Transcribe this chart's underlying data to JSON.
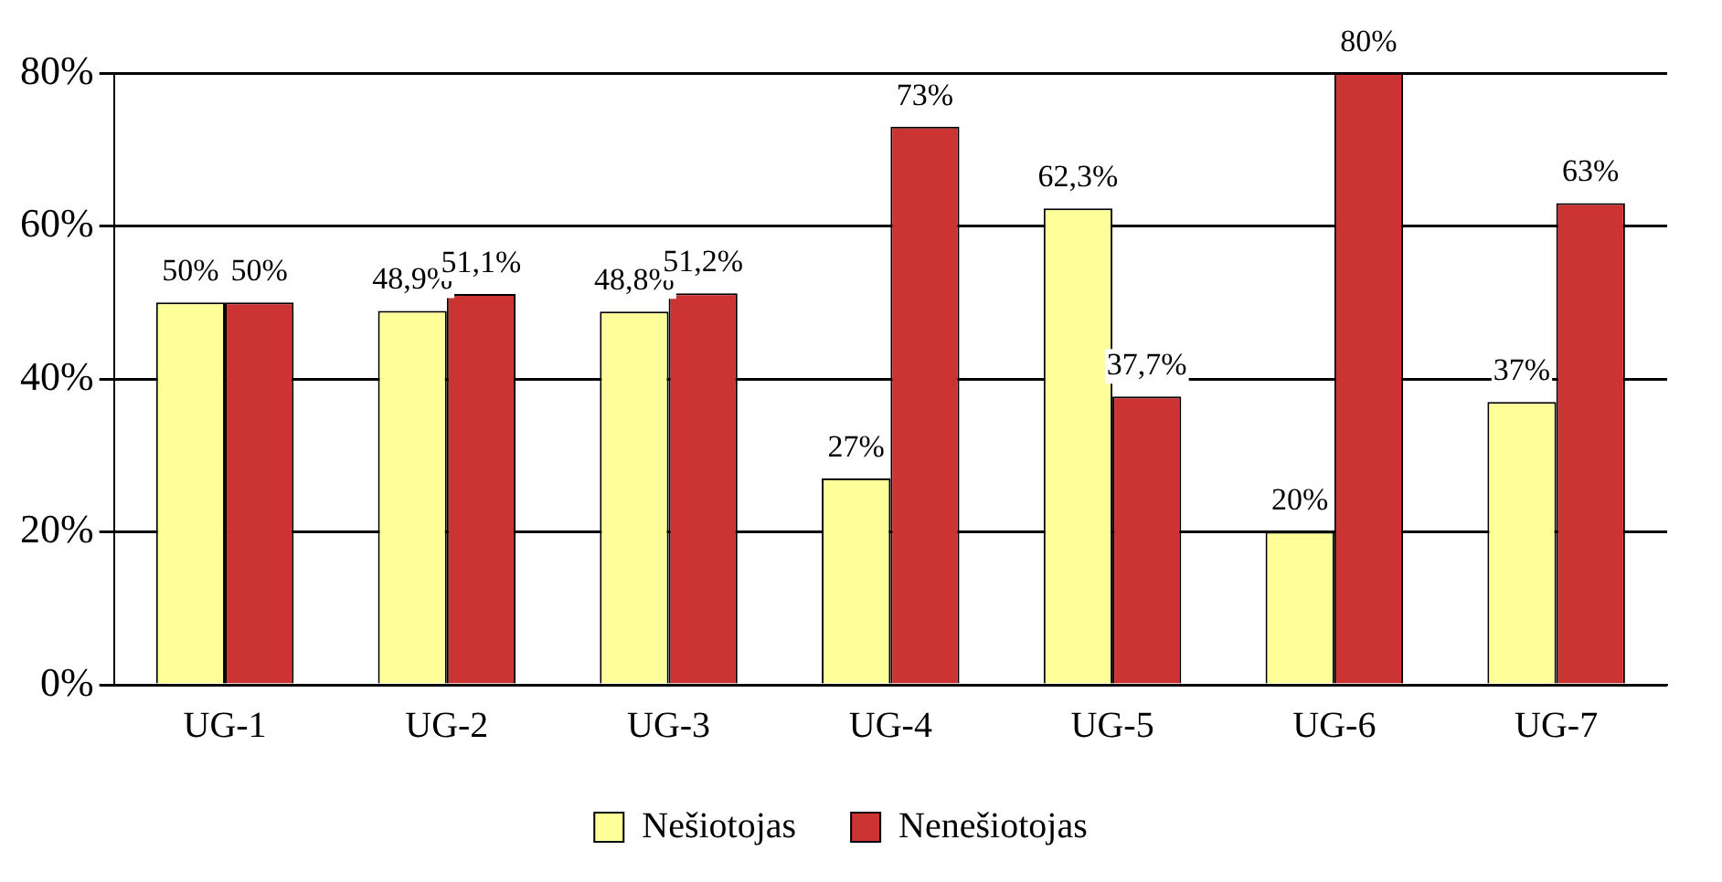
{
  "chart_data": {
    "type": "bar",
    "categories": [
      "UG-1",
      "UG-2",
      "UG-3",
      "UG-4",
      "UG-5",
      "UG-6",
      "UG-7"
    ],
    "series": [
      {
        "name": "Nešiotojas",
        "color": "#ffff99",
        "values": [
          50,
          48.9,
          48.8,
          27,
          62.3,
          20,
          37
        ],
        "value_labels": [
          "50%",
          "48,9%",
          "48,8%",
          "27%",
          "62,3%",
          "20%",
          "37%"
        ]
      },
      {
        "name": "Nenešiotojas",
        "color": "#cc3333",
        "values": [
          50,
          51.1,
          51.2,
          73,
          37.7,
          80,
          63
        ],
        "value_labels": [
          "50%",
          "51,1%",
          "51,2%",
          "73%",
          "37,7%",
          "80%",
          "63%"
        ]
      }
    ],
    "ylim": [
      0,
      80
    ],
    "yticks": [
      {
        "value": 0,
        "label": "0%"
      },
      {
        "value": 20,
        "label": "20%"
      },
      {
        "value": 40,
        "label": "40%"
      },
      {
        "value": 60,
        "label": "60%"
      },
      {
        "value": 80,
        "label": "80%"
      }
    ],
    "grid": "y",
    "legend": "bottom"
  }
}
